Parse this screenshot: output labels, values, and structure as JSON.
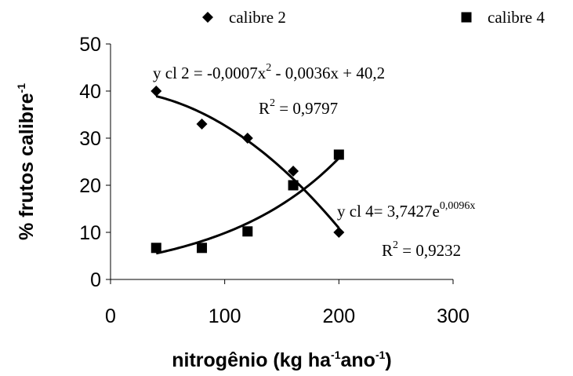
{
  "chart_data": {
    "type": "scatter",
    "x_label": [
      "nitrogênio (kg ha",
      "-1",
      "ano",
      "-1",
      ")"
    ],
    "y_label": [
      "% frutos calibre",
      "-1"
    ],
    "xlim": [
      0,
      300
    ],
    "xticks": [
      0,
      100,
      200,
      300
    ],
    "ylim": [
      0,
      50
    ],
    "yticks": [
      0,
      10,
      20,
      30,
      40,
      50
    ],
    "grid": false,
    "series": [
      {
        "name": "calibre 2",
        "marker": "diamond",
        "color": "#000000",
        "trendline": "polynomial2",
        "x": [
          40,
          80,
          120,
          160,
          200
        ],
        "values": [
          40,
          33,
          30,
          23,
          10
        ]
      },
      {
        "name": "calibre 4",
        "marker": "square",
        "color": "#000000",
        "trendline": "exponential",
        "x": [
          40,
          80,
          120,
          160,
          200
        ],
        "values": [
          6.7,
          6.7,
          10.2,
          20,
          26.5
        ]
      }
    ],
    "annotations": [
      [
        "y cl 2 = -0,0007x",
        "2",
        " - 0,0036x + 40,2"
      ],
      [
        "R",
        "2",
        " = 0,9797"
      ],
      [
        "y cl 4= 3,7427e",
        "0,0096x"
      ],
      [
        "R",
        "2",
        " = 0,9232"
      ]
    ]
  }
}
